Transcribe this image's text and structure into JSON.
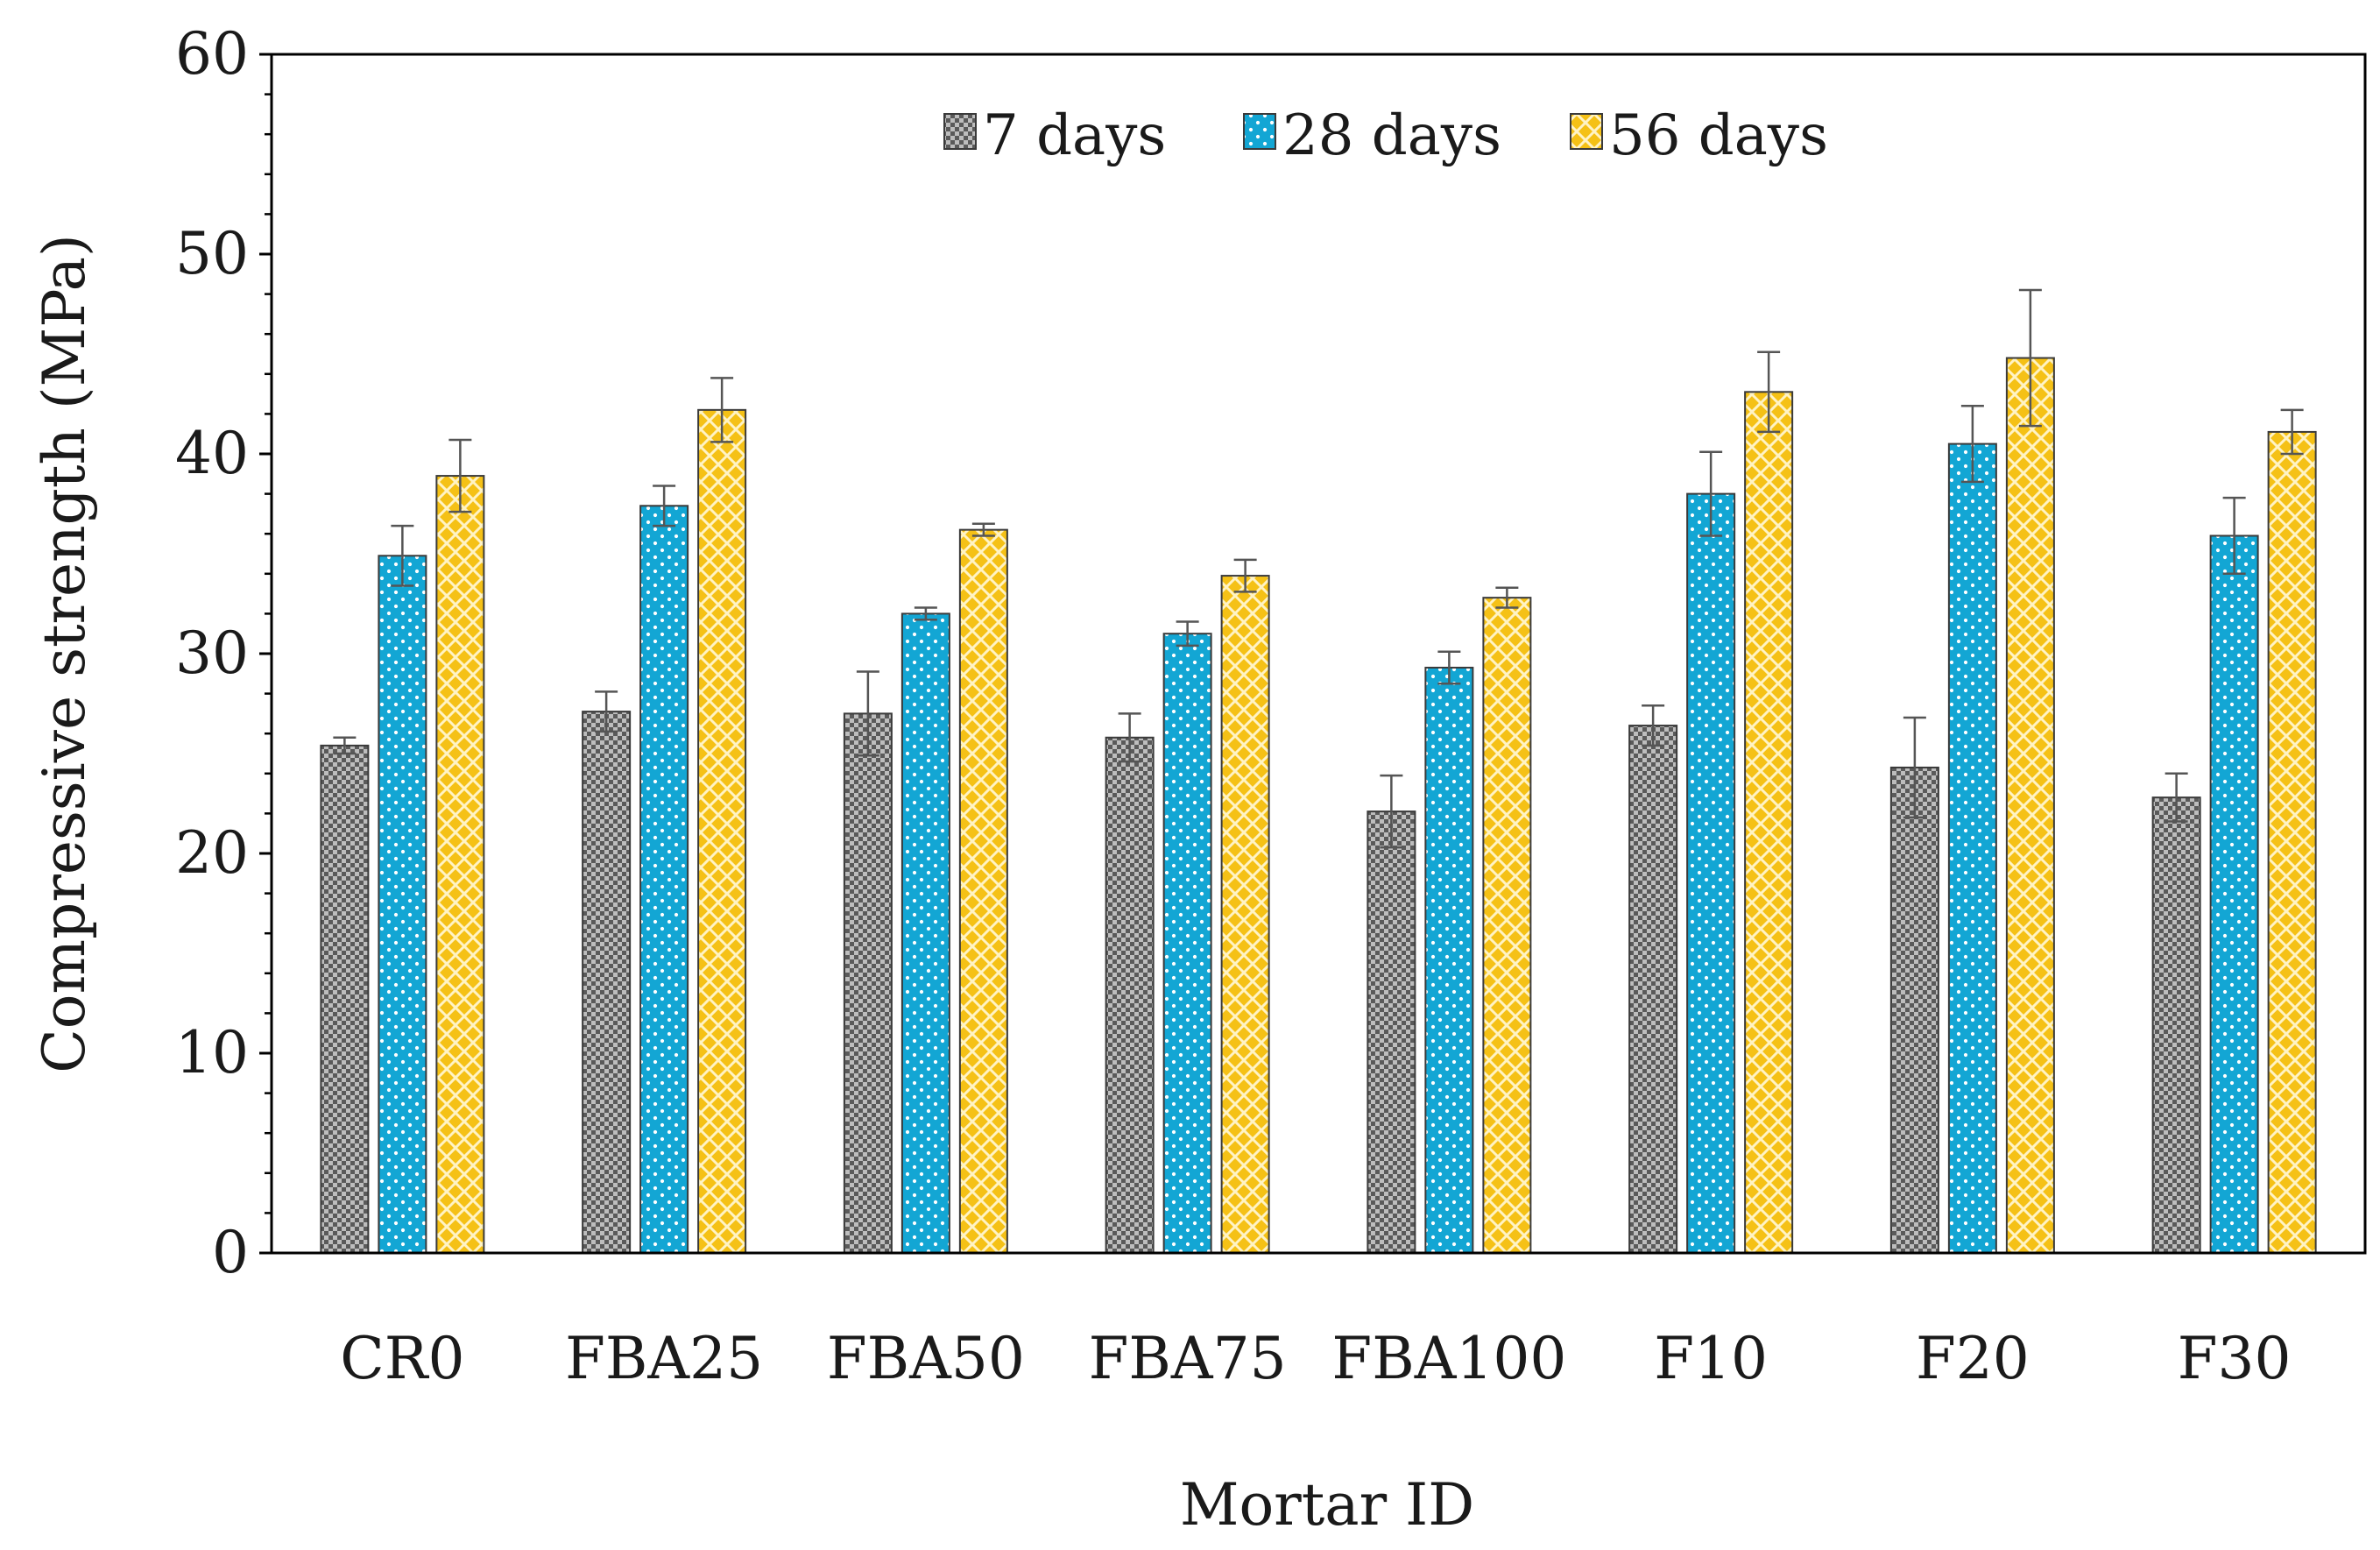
{
  "chart_data": {
    "type": "bar",
    "title": "",
    "xlabel": "Mortar ID",
    "ylabel": "Compressive strength (MPa)",
    "ylim": [
      0,
      60
    ],
    "yticks": [
      0,
      10,
      20,
      30,
      40,
      50,
      60
    ],
    "grid": false,
    "legend_position": "top-center",
    "categories": [
      "CR0",
      "FBA25",
      "FBA50",
      "FBA75",
      "FBA100",
      "F10",
      "F20",
      "F30"
    ],
    "series": [
      {
        "name": "7 days",
        "color": "#7f7f7f",
        "pattern": "small-check",
        "values": [
          25.4,
          27.1,
          27.0,
          25.8,
          22.1,
          26.4,
          24.3,
          22.8
        ],
        "errors": [
          0.4,
          1.0,
          2.1,
          1.2,
          1.8,
          1.0,
          2.5,
          1.2
        ]
      },
      {
        "name": "28 days",
        "color": "#13a6d4",
        "pattern": "dots",
        "values": [
          34.9,
          37.4,
          32.0,
          31.0,
          29.3,
          38.0,
          40.5,
          35.9
        ],
        "errors": [
          1.5,
          1.0,
          0.3,
          0.6,
          0.8,
          2.1,
          1.9,
          1.9
        ]
      },
      {
        "name": "56 days",
        "color": "#f5c116",
        "pattern": "diamond-lattice",
        "values": [
          38.9,
          42.2,
          36.2,
          33.9,
          32.8,
          43.1,
          44.8,
          41.1
        ],
        "errors": [
          1.8,
          1.6,
          0.3,
          0.8,
          0.5,
          2.0,
          3.4,
          1.1
        ]
      }
    ]
  }
}
